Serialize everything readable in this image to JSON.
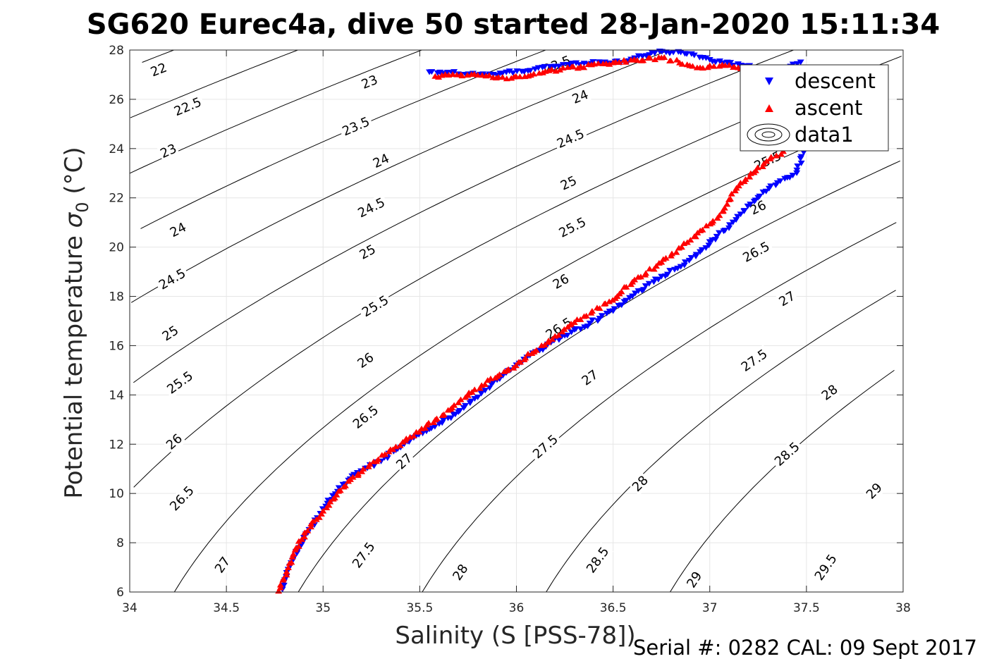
{
  "chart_data": {
    "type": "scatter",
    "title": "SG620 Eurec4a, dive 50 started 28-Jan-2020 15:11:34",
    "xlabel": "Salinity (S [PSS-78])",
    "ylabel_main": "Potential temperature ",
    "ylabel_sym": "σ",
    "ylabel_sub": "0",
    "ylabel_unit": " (°C)",
    "footer": "Serial #: 0282  CAL: 09 Sept 2017",
    "xlim": [
      34,
      38
    ],
    "ylim": [
      6,
      28
    ],
    "xticks": [
      34,
      34.5,
      35,
      35.5,
      36,
      36.5,
      37,
      37.5,
      38
    ],
    "xtick_labels": [
      "34",
      "34.5",
      "35",
      "35.5",
      "36",
      "36.5",
      "37",
      "37.5",
      "38"
    ],
    "yticks": [
      6,
      8,
      10,
      12,
      14,
      16,
      18,
      20,
      22,
      24,
      26,
      28
    ],
    "ytick_labels": [
      "6",
      "8",
      "10",
      "12",
      "14",
      "16",
      "18",
      "20",
      "22",
      "24",
      "26",
      "28"
    ],
    "grid": true,
    "legend_position": "top-right",
    "legend": [
      "descent",
      "ascent",
      "data1"
    ],
    "colors": {
      "descent": "#0000ff",
      "ascent": "#ff0000",
      "contour": "#000000",
      "grid": "#e6e6e6"
    },
    "contour_levels": [
      22,
      22.5,
      23,
      23.5,
      24,
      24.5,
      25,
      25.5,
      26,
      26.5,
      27,
      27.5,
      28,
      28.5,
      29,
      29.5
    ],
    "contour_labels": [
      {
        "text": "22",
        "x": 34.15,
        "y": 27.2,
        "level": 22
      },
      {
        "text": "22.5",
        "x": 34.3,
        "y": 25.7,
        "level": 22.5
      },
      {
        "text": "23",
        "x": 34.2,
        "y": 23.9,
        "level": 23
      },
      {
        "text": "24",
        "x": 34.25,
        "y": 20.7,
        "level": 24
      },
      {
        "text": "24.5",
        "x": 34.22,
        "y": 18.7,
        "level": 24.5
      },
      {
        "text": "25",
        "x": 34.21,
        "y": 16.5,
        "level": 25
      },
      {
        "text": "25.5",
        "x": 34.26,
        "y": 14.5,
        "level": 25.5
      },
      {
        "text": "26",
        "x": 34.23,
        "y": 12.1,
        "level": 26
      },
      {
        "text": "26.5",
        "x": 34.27,
        "y": 9.8,
        "level": 26.5
      },
      {
        "text": "27",
        "x": 34.48,
        "y": 7.1,
        "level": 27
      },
      {
        "text": "23",
        "x": 35.24,
        "y": 26.7,
        "level": 23
      },
      {
        "text": "23.5",
        "x": 35.17,
        "y": 24.9,
        "level": 23.5
      },
      {
        "text": "24",
        "x": 35.3,
        "y": 23.5,
        "level": 24
      },
      {
        "text": "24.5",
        "x": 35.25,
        "y": 21.6,
        "level": 24.5
      },
      {
        "text": "25",
        "x": 35.23,
        "y": 19.8,
        "level": 25
      },
      {
        "text": "25.5",
        "x": 35.27,
        "y": 17.6,
        "level": 25.5
      },
      {
        "text": "26",
        "x": 35.22,
        "y": 15.4,
        "level": 26
      },
      {
        "text": "26.5",
        "x": 35.22,
        "y": 13.1,
        "level": 26.5
      },
      {
        "text": "27",
        "x": 35.42,
        "y": 11.3,
        "level": 27
      },
      {
        "text": "27.5",
        "x": 35.21,
        "y": 7.5,
        "level": 27.5
      },
      {
        "text": "28",
        "x": 35.71,
        "y": 6.8,
        "level": 28
      },
      {
        "text": "23.5",
        "x": 36.21,
        "y": 27.4,
        "level": 23.5
      },
      {
        "text": "24",
        "x": 36.33,
        "y": 26.1,
        "level": 24
      },
      {
        "text": "24.5",
        "x": 36.28,
        "y": 24.4,
        "level": 24.5
      },
      {
        "text": "25",
        "x": 36.27,
        "y": 22.6,
        "level": 25
      },
      {
        "text": "25.5",
        "x": 36.29,
        "y": 20.8,
        "level": 25.5
      },
      {
        "text": "26",
        "x": 36.23,
        "y": 18.6,
        "level": 26
      },
      {
        "text": "26.5",
        "x": 36.22,
        "y": 16.7,
        "level": 26.5
      },
      {
        "text": "27",
        "x": 36.38,
        "y": 14.7,
        "level": 27
      },
      {
        "text": "27.5",
        "x": 36.15,
        "y": 11.9,
        "level": 27.5
      },
      {
        "text": "28",
        "x": 36.64,
        "y": 10.4,
        "level": 28
      },
      {
        "text": "28.5",
        "x": 36.42,
        "y": 7.3,
        "level": 28.5
      },
      {
        "text": "29",
        "x": 36.92,
        "y": 6.5,
        "level": 29
      },
      {
        "text": "25.5",
        "x": 37.3,
        "y": 23.5,
        "level": 25.5
      },
      {
        "text": "26",
        "x": 37.25,
        "y": 21.6,
        "level": 26
      },
      {
        "text": "26.5",
        "x": 37.24,
        "y": 19.8,
        "level": 26.5
      },
      {
        "text": "27",
        "x": 37.4,
        "y": 17.9,
        "level": 27
      },
      {
        "text": "27.5",
        "x": 37.23,
        "y": 15.4,
        "level": 27.5
      },
      {
        "text": "28",
        "x": 37.62,
        "y": 14.1,
        "level": 28
      },
      {
        "text": "28.5",
        "x": 37.4,
        "y": 11.6,
        "level": 28.5
      },
      {
        "text": "29",
        "x": 37.85,
        "y": 10.1,
        "level": 29
      },
      {
        "text": "29.5",
        "x": 37.6,
        "y": 7.0,
        "level": 29.5
      }
    ],
    "series": [
      {
        "name": "descent",
        "marker": "triangle-down",
        "color": "#0000ff",
        "points": [
          [
            37.47,
            27.5
          ],
          [
            37.35,
            27.1
          ],
          [
            37.18,
            27.35
          ],
          [
            37.0,
            27.6
          ],
          [
            36.85,
            27.9
          ],
          [
            36.7,
            27.9
          ],
          [
            36.58,
            27.55
          ],
          [
            36.35,
            27.45
          ],
          [
            35.88,
            27.0
          ],
          [
            35.55,
            27.1
          ],
          [
            37.5,
            24.2
          ],
          [
            37.45,
            23.0
          ],
          [
            37.35,
            22.6
          ],
          [
            37.25,
            22.0
          ],
          [
            37.12,
            21.0
          ],
          [
            36.95,
            19.8
          ],
          [
            36.85,
            19.2
          ],
          [
            36.75,
            18.8
          ],
          [
            36.6,
            18.0
          ],
          [
            36.5,
            17.4
          ],
          [
            36.38,
            16.9
          ],
          [
            36.25,
            16.4
          ],
          [
            36.12,
            15.8
          ],
          [
            36.0,
            15.2
          ],
          [
            35.9,
            14.6
          ],
          [
            35.8,
            13.9
          ],
          [
            35.7,
            13.3
          ],
          [
            35.55,
            12.6
          ],
          [
            35.42,
            12.0
          ],
          [
            35.3,
            11.3
          ],
          [
            35.15,
            10.7
          ],
          [
            35.05,
            9.9
          ],
          [
            34.97,
            9.0
          ],
          [
            34.9,
            8.2
          ],
          [
            34.85,
            7.4
          ],
          [
            34.81,
            6.6
          ],
          [
            34.79,
            6.1
          ]
        ]
      },
      {
        "name": "ascent",
        "marker": "triangle-up",
        "color": "#ff0000",
        "points": [
          [
            37.2,
            27.2
          ],
          [
            37.1,
            27.4
          ],
          [
            36.95,
            27.3
          ],
          [
            36.75,
            27.7
          ],
          [
            36.5,
            27.5
          ],
          [
            36.15,
            27.15
          ],
          [
            35.95,
            26.85
          ],
          [
            35.8,
            27.0
          ],
          [
            35.65,
            27.0
          ],
          [
            35.58,
            26.95
          ],
          [
            37.38,
            23.9
          ],
          [
            37.28,
            23.4
          ],
          [
            37.15,
            22.5
          ],
          [
            37.05,
            21.3
          ],
          [
            36.9,
            20.3
          ],
          [
            36.75,
            19.4
          ],
          [
            36.6,
            18.6
          ],
          [
            36.48,
            17.8
          ],
          [
            36.35,
            17.2
          ],
          [
            36.2,
            16.4
          ],
          [
            36.08,
            15.7
          ],
          [
            35.95,
            15.0
          ],
          [
            35.82,
            14.4
          ],
          [
            35.7,
            13.7
          ],
          [
            35.58,
            13.0
          ],
          [
            35.45,
            12.3
          ],
          [
            35.32,
            11.6
          ],
          [
            35.2,
            10.9
          ],
          [
            35.08,
            10.1
          ],
          [
            35.0,
            9.3
          ],
          [
            34.92,
            8.5
          ],
          [
            34.86,
            7.8
          ],
          [
            34.82,
            7.0
          ],
          [
            34.78,
            6.3
          ],
          [
            34.77,
            6.05
          ]
        ]
      }
    ]
  }
}
